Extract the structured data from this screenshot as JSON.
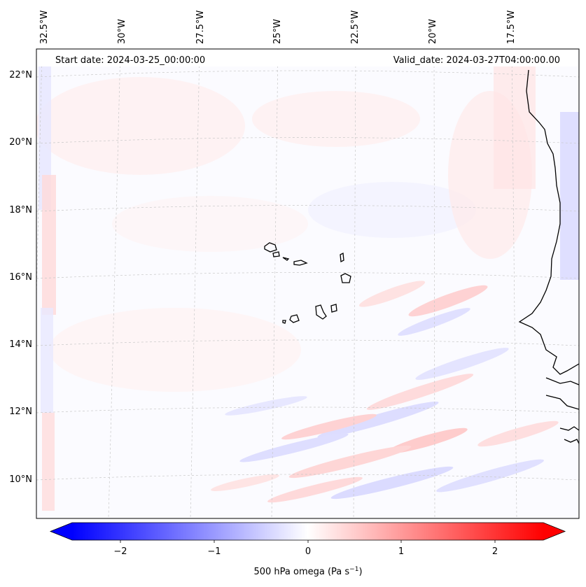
{
  "header": {
    "start_date": "Start date: 2024-03-25_00:00:00",
    "valid_date": "Valid_date: 2024-03-27T04:00:00.00"
  },
  "axes": {
    "lon_labels": [
      "32.5°W",
      "30°W",
      "27.5°W",
      "25°W",
      "22.5°W",
      "20°W",
      "17.5°W"
    ],
    "lat_labels": [
      "22°N",
      "20°N",
      "18°N",
      "16°N",
      "14°N",
      "12°N",
      "10°N"
    ]
  },
  "colorbar": {
    "label": "500 hPa omega (Pa s",
    "label_sup": "−1",
    "label_end": ")",
    "ticks": [
      "−2",
      "−1",
      "0",
      "1",
      "2"
    ],
    "range": [
      -2.6,
      2.6
    ],
    "neg_color": "#0000ff",
    "zero_color": "#ffffff",
    "pos_color": "#ff0000"
  },
  "field": {
    "variable": "500 hPa omega",
    "units": "Pa s^-1",
    "extent_lon": [
      -33.5,
      -16.0
    ],
    "extent_lat": [
      8.9,
      22.8
    ]
  }
}
